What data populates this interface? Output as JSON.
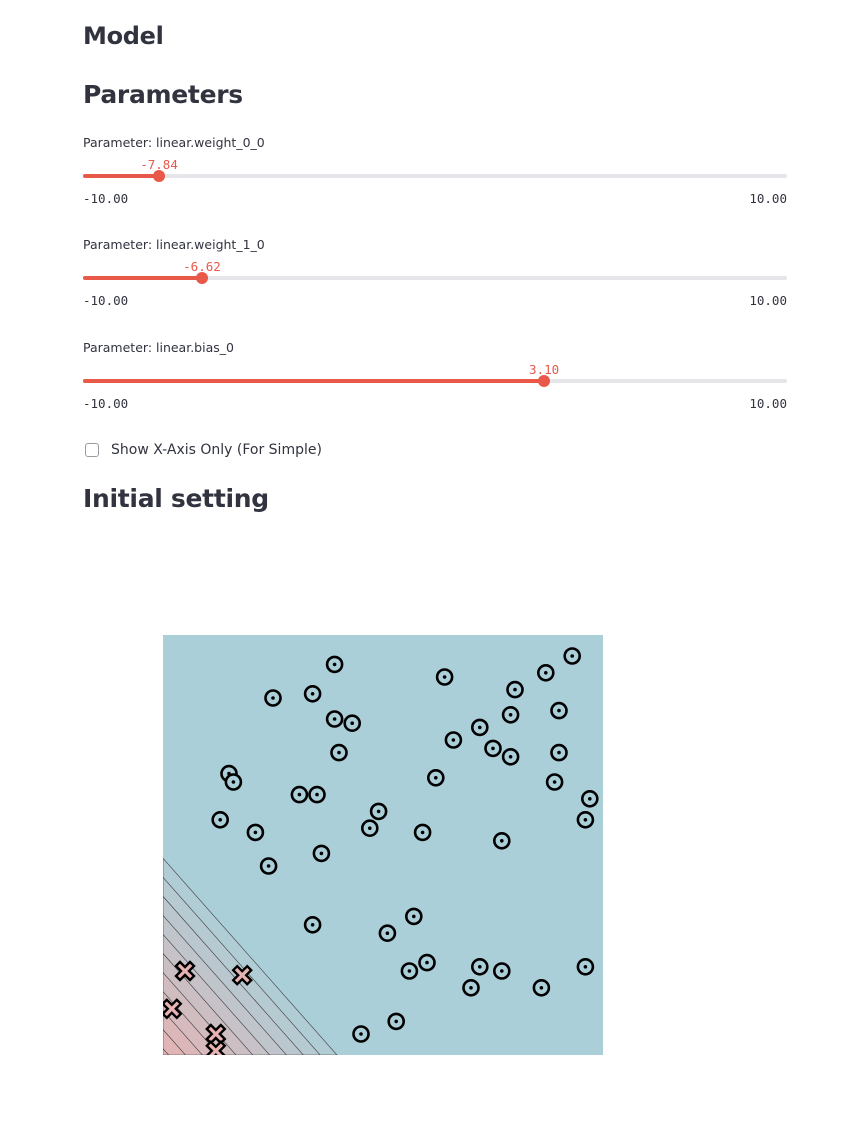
{
  "header": {
    "model_title": "Model",
    "parameters_title": "Parameters"
  },
  "sliders": [
    {
      "label": "Parameter: linear.weight_0_0",
      "value": -7.84,
      "value_text": "-7.84",
      "min": -10,
      "max": 10,
      "min_text": "-10.00",
      "max_text": "10.00"
    },
    {
      "label": "Parameter: linear.weight_1_0",
      "value": -6.62,
      "value_text": "-6.62",
      "min": -10,
      "max": 10,
      "min_text": "-10.00",
      "max_text": "10.00"
    },
    {
      "label": "Parameter: linear.bias_0",
      "value": 3.1,
      "value_text": "3.10",
      "min": -10,
      "max": 10,
      "min_text": "-10.00",
      "max_text": "10.00"
    }
  ],
  "checkbox": {
    "label": "Show X-Axis Only (For Simple)",
    "checked": false
  },
  "section": {
    "initial_title": "Initial setting"
  },
  "colors": {
    "accent": "#e8594a",
    "class_region_o": "#abcfd9",
    "class_region_x": "#e6b2b2"
  },
  "chart_data": {
    "type": "scatter",
    "title": "",
    "xlabel": "",
    "ylabel": "",
    "xlim": [
      0,
      1
    ],
    "ylim": [
      0,
      1
    ],
    "grid": false,
    "decision_boundary": {
      "w0": -7.84,
      "w1": -6.62,
      "b": 3.1
    },
    "series": [
      {
        "marker": "o",
        "points": [
          [
            0.39,
            0.93
          ],
          [
            0.64,
            0.9
          ],
          [
            0.93,
            0.95
          ],
          [
            0.87,
            0.91
          ],
          [
            0.8,
            0.87
          ],
          [
            0.25,
            0.85
          ],
          [
            0.34,
            0.86
          ],
          [
            0.79,
            0.81
          ],
          [
            0.9,
            0.82
          ],
          [
            0.39,
            0.8
          ],
          [
            0.43,
            0.79
          ],
          [
            0.72,
            0.78
          ],
          [
            0.66,
            0.75
          ],
          [
            0.75,
            0.73
          ],
          [
            0.79,
            0.71
          ],
          [
            0.4,
            0.72
          ],
          [
            0.15,
            0.67
          ],
          [
            0.16,
            0.65
          ],
          [
            0.9,
            0.72
          ],
          [
            0.89,
            0.65
          ],
          [
            0.62,
            0.66
          ],
          [
            0.31,
            0.62
          ],
          [
            0.35,
            0.62
          ],
          [
            0.97,
            0.61
          ],
          [
            0.49,
            0.58
          ],
          [
            0.96,
            0.56
          ],
          [
            0.13,
            0.56
          ],
          [
            0.21,
            0.53
          ],
          [
            0.47,
            0.54
          ],
          [
            0.59,
            0.53
          ],
          [
            0.77,
            0.51
          ],
          [
            0.36,
            0.48
          ],
          [
            0.24,
            0.45
          ],
          [
            0.34,
            0.31
          ],
          [
            0.57,
            0.33
          ],
          [
            0.51,
            0.29
          ],
          [
            0.6,
            0.22
          ],
          [
            0.56,
            0.2
          ],
          [
            0.72,
            0.21
          ],
          [
            0.77,
            0.2
          ],
          [
            0.7,
            0.16
          ],
          [
            0.86,
            0.16
          ],
          [
            0.96,
            0.21
          ],
          [
            0.53,
            0.08
          ],
          [
            0.45,
            0.05
          ]
        ]
      },
      {
        "marker": "x",
        "points": [
          [
            0.05,
            0.2
          ],
          [
            0.18,
            0.19
          ],
          [
            0.02,
            0.11
          ],
          [
            0.12,
            0.05
          ],
          [
            0.12,
            0.01
          ]
        ]
      }
    ]
  }
}
